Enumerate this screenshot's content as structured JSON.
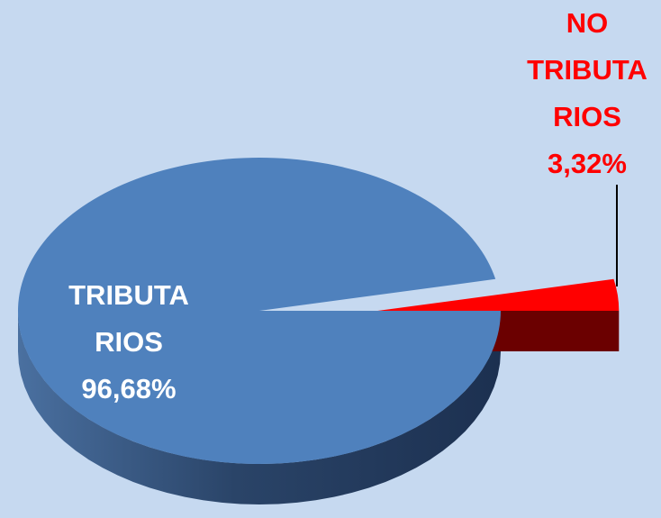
{
  "chart_data": {
    "type": "pie",
    "categories": [
      [
        "TRIBUTA",
        "RIOS"
      ],
      [
        "NO",
        "TRIBUTA",
        "RIOS"
      ]
    ],
    "values": [
      96.68,
      3.32
    ],
    "value_labels": [
      "96,68%",
      "3,32%"
    ],
    "colors": [
      "#4f81bd",
      "#ff0000"
    ]
  }
}
